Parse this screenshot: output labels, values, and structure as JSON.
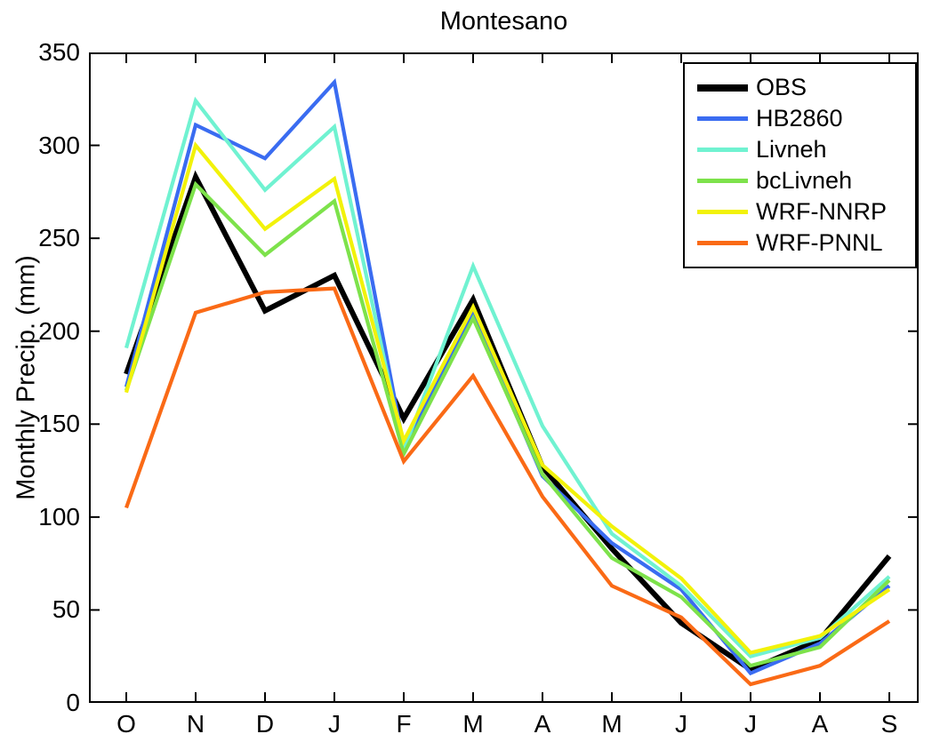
{
  "chart_data": {
    "type": "line",
    "title": "Montesano",
    "xlabel": "",
    "ylabel": "Monthly Precip. (mm)",
    "categories": [
      "O",
      "N",
      "D",
      "J",
      "F",
      "M",
      "A",
      "M",
      "J",
      "J",
      "A",
      "S"
    ],
    "ylim": [
      0,
      350
    ],
    "yticks": [
      0,
      50,
      100,
      150,
      200,
      250,
      300,
      350
    ],
    "grid": false,
    "legend_position": "top-right",
    "axis_color": "#000000",
    "background_color": "#ffffff",
    "series": [
      {
        "name": "OBS",
        "color": "#000000",
        "line_width": 6,
        "values": [
          177,
          283,
          211,
          230,
          153,
          217,
          127,
          83,
          43,
          18,
          34,
          79
        ]
      },
      {
        "name": "HB2860",
        "color": "#3a6cf1",
        "line_width": 4.2,
        "values": [
          170,
          311,
          293,
          334,
          138,
          209,
          122,
          86,
          61,
          16,
          32,
          63
        ]
      },
      {
        "name": "Livneh",
        "color": "#70f2d1",
        "line_width": 4.2,
        "values": [
          191,
          324,
          276,
          310,
          136,
          235,
          149,
          91,
          63,
          25,
          35,
          68
        ]
      },
      {
        "name": "bcLivneh",
        "color": "#7de24b",
        "line_width": 4.2,
        "values": [
          168,
          279,
          241,
          270,
          134,
          207,
          123,
          78,
          57,
          20,
          30,
          66
        ]
      },
      {
        "name": "WRF-NNRP",
        "color": "#f2f20a",
        "line_width": 4.2,
        "values": [
          167,
          300,
          255,
          282,
          141,
          213,
          128,
          95,
          67,
          27,
          36,
          61
        ]
      },
      {
        "name": "WRF-PNNL",
        "color": "#fa6a16",
        "line_width": 4.2,
        "values": [
          105,
          210,
          221,
          223,
          130,
          176,
          111,
          63,
          46,
          10,
          20,
          44
        ]
      }
    ]
  }
}
